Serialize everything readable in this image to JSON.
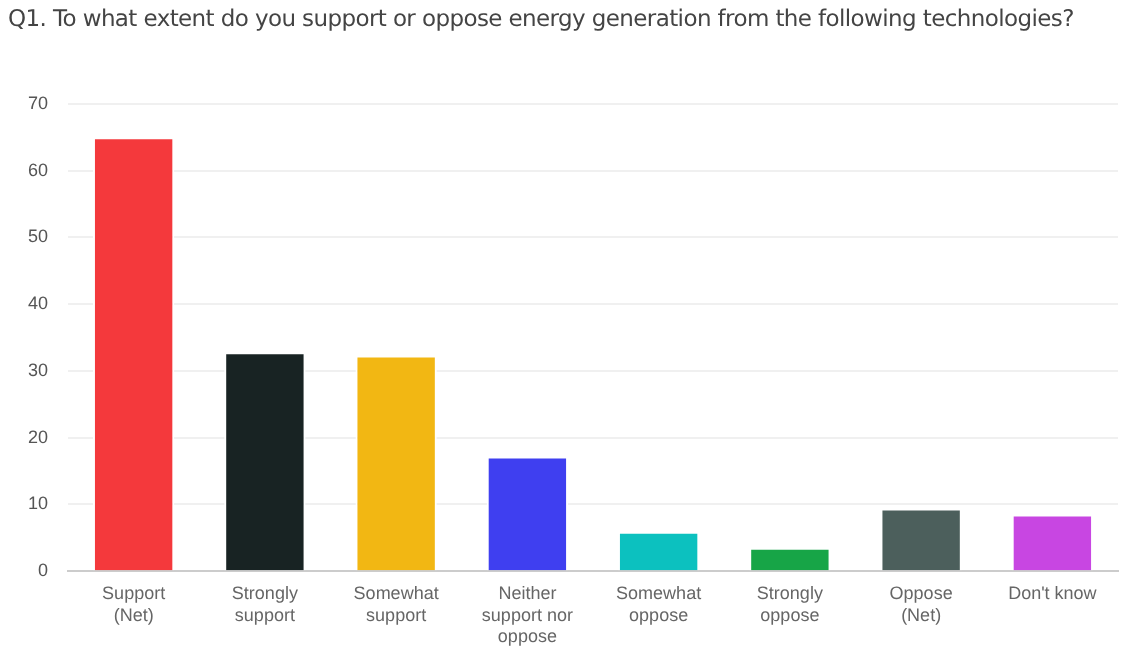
{
  "chart_data": {
    "type": "bar",
    "title": "Q1. To what extent do you support or oppose energy generation from the following technologies?",
    "categories": [
      "Support (Net)",
      "Strongly support",
      "Somewhat support",
      "Neither support nor oppose",
      "Somewhat oppose",
      "Strongly oppose",
      "Oppose (Net)",
      "Don't know"
    ],
    "values": [
      65,
      32.8,
      32.3,
      17.2,
      5.9,
      3.5,
      9.4,
      8.5
    ],
    "colors": [
      "#f4393c",
      "#182323",
      "#f2b713",
      "#3f3ff0",
      "#0cc1bf",
      "#17a547",
      "#4c5f5c",
      "#c846e2"
    ],
    "ylim": [
      0,
      70
    ],
    "yticks": [
      0,
      10,
      20,
      30,
      40,
      50,
      60,
      70
    ],
    "grid": "y",
    "legend": false
  }
}
